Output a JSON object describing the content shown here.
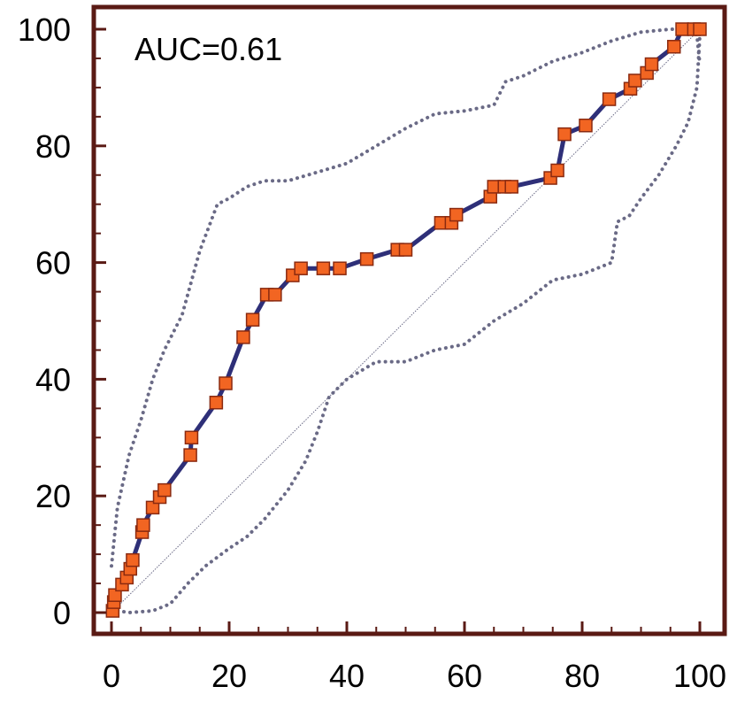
{
  "chart_data": {
    "type": "line",
    "title": "",
    "xlabel": "",
    "ylabel": "",
    "annotation": "AUC=0.61",
    "xlim": [
      0,
      100
    ],
    "ylim": [
      0,
      100
    ],
    "x_ticks": [
      0,
      20,
      40,
      60,
      80,
      100
    ],
    "y_ticks": [
      0,
      20,
      40,
      60,
      80,
      100
    ],
    "grid": false,
    "legend": "none",
    "colors": {
      "frame": "#5a1a14",
      "curve": "#2e2f78",
      "marker_fill": "#f26522",
      "marker_stroke": "#8a2a10",
      "band": "#6a6a86",
      "diagonal": "#6a6a86"
    },
    "series": [
      {
        "role": "roc-curve",
        "points": [
          [
            0.2,
            0.3
          ],
          [
            0.4,
            1.8
          ],
          [
            0.6,
            3.0
          ],
          [
            1.8,
            4.8
          ],
          [
            2.6,
            6.0
          ],
          [
            3.2,
            7.5
          ],
          [
            3.6,
            9.0
          ],
          [
            5.2,
            13.8
          ],
          [
            5.4,
            15.0
          ],
          [
            7.0,
            18.0
          ],
          [
            8.2,
            19.8
          ],
          [
            9.0,
            21.0
          ],
          [
            13.4,
            27.0
          ],
          [
            13.6,
            30.0
          ],
          [
            17.8,
            36.0
          ],
          [
            19.4,
            39.3
          ],
          [
            22.4,
            47.2
          ],
          [
            24.0,
            50.2
          ],
          [
            26.4,
            54.5
          ],
          [
            27.8,
            54.5
          ],
          [
            30.8,
            57.8
          ],
          [
            32.2,
            59.0
          ],
          [
            36.0,
            59.0
          ],
          [
            38.8,
            59.0
          ],
          [
            43.4,
            60.6
          ],
          [
            48.6,
            62.2
          ],
          [
            50.0,
            62.2
          ],
          [
            56.0,
            66.8
          ],
          [
            57.8,
            66.8
          ],
          [
            58.6,
            68.2
          ],
          [
            64.4,
            71.3
          ],
          [
            65.0,
            73.0
          ],
          [
            66.8,
            73.0
          ],
          [
            68.0,
            73.0
          ],
          [
            74.6,
            74.5
          ],
          [
            75.8,
            75.8
          ],
          [
            77.0,
            82.0
          ],
          [
            80.6,
            83.5
          ],
          [
            84.6,
            88.0
          ],
          [
            88.2,
            89.8
          ],
          [
            89.0,
            91.2
          ],
          [
            91.0,
            92.5
          ],
          [
            91.8,
            94.0
          ],
          [
            95.6,
            97.0
          ],
          [
            97.0,
            100.0
          ],
          [
            99.0,
            100.0
          ],
          [
            100.0,
            100.0
          ]
        ]
      },
      {
        "role": "upper-confidence-band",
        "points": [
          [
            0,
            8
          ],
          [
            1,
            18
          ],
          [
            3,
            27
          ],
          [
            5,
            33
          ],
          [
            7,
            40
          ],
          [
            9,
            45
          ],
          [
            12,
            51
          ],
          [
            15,
            62
          ],
          [
            18,
            70
          ],
          [
            20,
            71
          ],
          [
            23,
            73
          ],
          [
            26,
            74
          ],
          [
            30,
            74
          ],
          [
            35,
            75.5
          ],
          [
            40,
            77
          ],
          [
            45,
            80
          ],
          [
            50,
            83
          ],
          [
            55,
            85.5
          ],
          [
            60,
            86
          ],
          [
            65,
            87
          ],
          [
            67,
            91
          ],
          [
            70,
            92
          ],
          [
            75,
            94.5
          ],
          [
            80,
            96
          ],
          [
            85,
            98
          ],
          [
            90,
            99.5
          ],
          [
            95,
            100
          ],
          [
            98,
            100
          ],
          [
            99.5,
            99
          ],
          [
            100,
            94
          ]
        ]
      },
      {
        "role": "lower-confidence-band",
        "points": [
          [
            0,
            0.5
          ],
          [
            3,
            0
          ],
          [
            7,
            0.3
          ],
          [
            10,
            1.5
          ],
          [
            13,
            5
          ],
          [
            16,
            8
          ],
          [
            20,
            11
          ],
          [
            23,
            13
          ],
          [
            26,
            16
          ],
          [
            30,
            21
          ],
          [
            33,
            26
          ],
          [
            35,
            31
          ],
          [
            37,
            37
          ],
          [
            40,
            40
          ],
          [
            45,
            43
          ],
          [
            50,
            43
          ],
          [
            55,
            45
          ],
          [
            60,
            46
          ],
          [
            65,
            50
          ],
          [
            70,
            53
          ],
          [
            75,
            57
          ],
          [
            80,
            58
          ],
          [
            85,
            60
          ],
          [
            86,
            67
          ],
          [
            88,
            68
          ],
          [
            90,
            71
          ],
          [
            93,
            75
          ],
          [
            96,
            80
          ],
          [
            98,
            84
          ],
          [
            99.5,
            90
          ],
          [
            100,
            99
          ]
        ]
      },
      {
        "role": "diagonal-reference",
        "points": [
          [
            0,
            0
          ],
          [
            100,
            100
          ]
        ]
      }
    ]
  }
}
